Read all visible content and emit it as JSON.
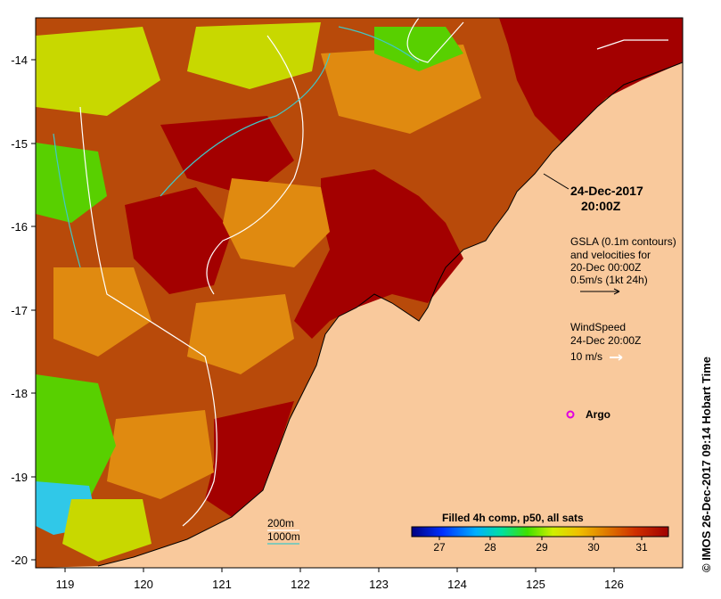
{
  "map": {
    "x_ticks": [
      "119",
      "120",
      "121",
      "122",
      "123",
      "124",
      "125",
      "126"
    ],
    "y_ticks": [
      "-14",
      "-15",
      "-16",
      "-17",
      "-18",
      "-19",
      "-20"
    ],
    "date_line1": "24-Dec-2017",
    "date_line2": "20:00Z",
    "gsla_line1": "GSLA (0.1m contours)",
    "gsla_line2": "and velocities for",
    "gsla_line3": "20-Dec 00:00Z",
    "velocity_scale": "0.5m/s (1kt 24h)",
    "wind_title": "WindSpeed",
    "wind_time": "24-Dec 20:00Z",
    "wind_scale": "10 m/s",
    "argo_label": "Argo",
    "depth_200": "200m",
    "depth_1000": "1000m",
    "colorbar_title": "Filled 4h comp, p50, all sats",
    "colorbar_ticks": [
      "27",
      "28",
      "29",
      "30",
      "31"
    ],
    "credit": "© IMOS 26-Dec-2017 09:14 Hobart Time"
  },
  "colors": {
    "land": "#f9c99c",
    "sst_high": "#a30000",
    "argo": "#e000e0",
    "depth_200": "#ffffff",
    "depth_1000": "#40c8c8"
  }
}
